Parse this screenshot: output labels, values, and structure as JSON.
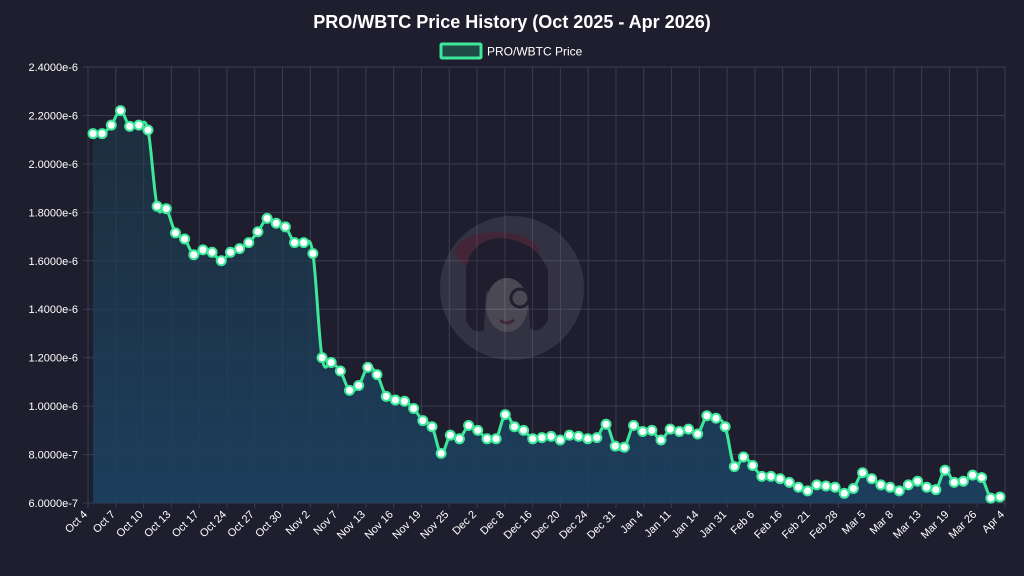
{
  "chart_data": {
    "type": "line",
    "title": "PRO/WBTC Price History (Oct 2025 - Apr 2026)",
    "legend": {
      "position": "top",
      "label": "PRO/WBTC Price"
    },
    "colors": {
      "background": "#1e1e2e",
      "line": "#3ee89a",
      "fill_top": "#1d3b4a",
      "fill_bottom": "#1c4060",
      "grid": "#3a3d52",
      "text": "#ffffff"
    },
    "ylim": [
      6e-07,
      2.4e-06
    ],
    "yticks": [
      "6.0000e-7",
      "8.0000e-7",
      "1.0000e-6",
      "1.2000e-6",
      "1.4000e-6",
      "1.6000e-6",
      "1.8000e-6",
      "2.0000e-6",
      "2.2000e-6",
      "2.4000e-6"
    ],
    "xticks": [
      "Oct 4",
      "Oct 7",
      "Oct 10",
      "Oct 13",
      "Oct 17",
      "Oct 24",
      "Oct 27",
      "Oct 30",
      "Nov 2",
      "Nov 7",
      "Nov 13",
      "Nov 16",
      "Nov 19",
      "Nov 25",
      "Dec 2",
      "Dec 8",
      "Dec 16",
      "Dec 20",
      "Dec 24",
      "Dec 31",
      "Jan 4",
      "Jan 11",
      "Jan 14",
      "Jan 31",
      "Feb 6",
      "Feb 16",
      "Feb 21",
      "Feb 28",
      "Mar 5",
      "Mar 8",
      "Mar 13",
      "Mar 19",
      "Mar 26",
      "Apr 4"
    ],
    "grid": true,
    "watermark": "avatar-logo",
    "series": [
      {
        "name": "PRO/WBTC Price",
        "values": [
          2.125e-06,
          2.125e-06,
          2.16e-06,
          2.22e-06,
          2.155e-06,
          2.16e-06,
          2.14e-06,
          1.825e-06,
          1.815e-06,
          1.715e-06,
          1.69e-06,
          1.625e-06,
          1.645e-06,
          1.635e-06,
          1.6e-06,
          1.635e-06,
          1.65e-06,
          1.675e-06,
          1.72e-06,
          1.775e-06,
          1.755e-06,
          1.74e-06,
          1.675e-06,
          1.675e-06,
          1.63e-06,
          1.2e-06,
          1.18e-06,
          1.145e-06,
          1.065e-06,
          1.085e-06,
          1.16e-06,
          1.13e-06,
          1.04e-06,
          1.025e-06,
          1.02e-06,
          9.9e-07,
          9.4e-07,
          9.15e-07,
          8.05e-07,
          8.8e-07,
          8.65e-07,
          9.2e-07,
          9e-07,
          8.65e-07,
          8.65e-07,
          9.65e-07,
          9.15e-07,
          9e-07,
          8.65e-07,
          8.7e-07,
          8.75e-07,
          8.6e-07,
          8.8e-07,
          8.75e-07,
          8.65e-07,
          8.7e-07,
          9.25e-07,
          8.35e-07,
          8.3e-07,
          9.2e-07,
          8.95e-07,
          9e-07,
          8.6e-07,
          9.05e-07,
          8.95e-07,
          9.05e-07,
          8.85e-07,
          9.6e-07,
          9.5e-07,
          9.15e-07,
          7.5e-07,
          7.9e-07,
          7.55e-07,
          7.1e-07,
          7.1e-07,
          7e-07,
          6.85e-07,
          6.65e-07,
          6.5e-07,
          6.75e-07,
          6.7e-07,
          6.65e-07,
          6.4e-07,
          6.6e-07,
          7.25e-07,
          7e-07,
          6.75e-07,
          6.65e-07,
          6.5e-07,
          6.75e-07,
          6.9e-07,
          6.65e-07,
          6.55e-07,
          7.35e-07,
          6.85e-07,
          6.9e-07,
          7.15e-07,
          7.05e-07,
          6.2e-07,
          6.25e-07
        ]
      }
    ]
  }
}
